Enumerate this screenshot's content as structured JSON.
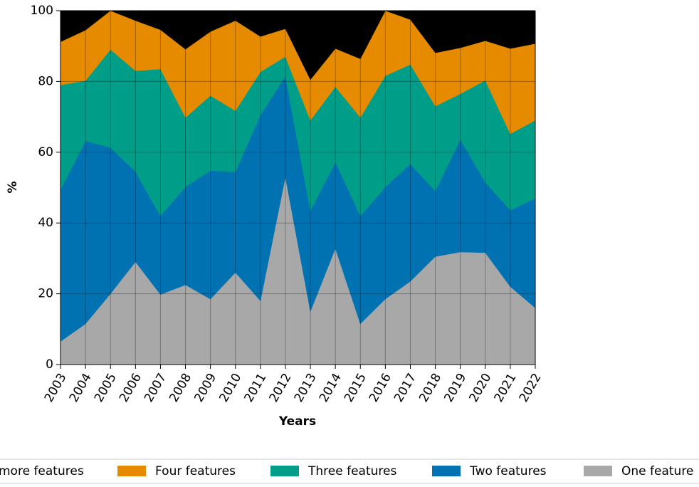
{
  "chart_data": {
    "type": "stacked-area",
    "x_label": "Years",
    "y_label": "%",
    "categories": [
      "2003",
      "2004",
      "2005",
      "2006",
      "2007",
      "2008",
      "2009",
      "2010",
      "2011",
      "2012",
      "2013",
      "2014",
      "2015",
      "2016",
      "2017",
      "2018",
      "2019",
      "2020",
      "2021",
      "2022"
    ],
    "series": [
      {
        "name": "more features",
        "color": "#000000",
        "values": [
          8.8,
          5.5,
          0,
          2.8,
          5.4,
          10.9,
          5.9,
          2.8,
          7.3,
          5.1,
          19.5,
          10.7,
          13.6,
          0,
          2.5,
          11.9,
          10.5,
          8.5,
          10.7,
          9.3
        ]
      },
      {
        "name": "Four features",
        "color": "#e68a00",
        "values": [
          12.2,
          14.3,
          11,
          14.2,
          11.1,
          19.3,
          18.1,
          25.5,
          10,
          7.9,
          11.5,
          10.8,
          16.6,
          18.4,
          12.7,
          15.1,
          13,
          11.2,
          24.1,
          21.7
        ]
      },
      {
        "name": "Three features",
        "color": "#009e88",
        "values": [
          29.5,
          17,
          27.7,
          28.5,
          41.5,
          19.6,
          21.2,
          17.2,
          12.2,
          5.5,
          25.5,
          21.3,
          27.8,
          31.4,
          28.1,
          24,
          12.9,
          28.8,
          21.6,
          22
        ]
      },
      {
        "name": "Two features",
        "color": "#0072b2",
        "values": [
          43,
          51.7,
          41.3,
          25.5,
          22.2,
          27.7,
          36.3,
          28.5,
          52.5,
          28.5,
          28.5,
          24.4,
          30.5,
          31.7,
          33.2,
          18.5,
          31.8,
          19.9,
          21.6,
          31
        ]
      },
      {
        "name": "One feature",
        "color": "#a8a8a8",
        "values": [
          6.5,
          11.5,
          20,
          29,
          19.8,
          22.5,
          18.5,
          26,
          18,
          53,
          15,
          32.8,
          11.5,
          18.5,
          23.5,
          30.5,
          31.8,
          31.6,
          22,
          16
        ]
      }
    ],
    "ylim": [
      0,
      100
    ],
    "yticks": [
      0,
      20,
      40,
      60,
      80,
      100
    ],
    "grid": true,
    "legend": "bottom"
  }
}
